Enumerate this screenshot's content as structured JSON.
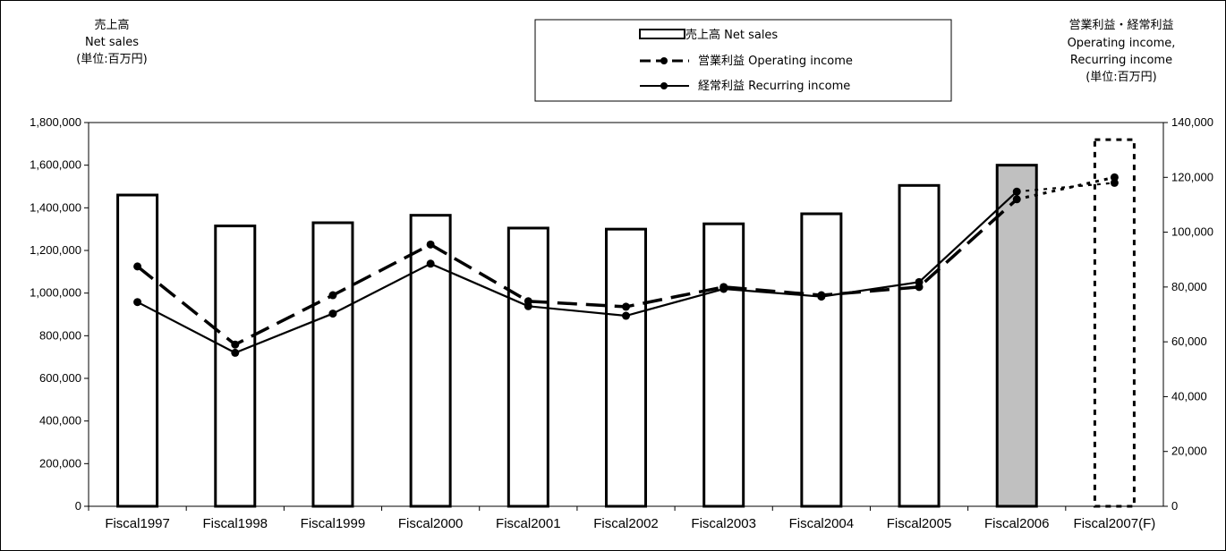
{
  "left_axis_title": [
    "売上高",
    "Net sales",
    "(単位:百万円)"
  ],
  "right_axis_title": [
    "営業利益・経常利益",
    "Operating income,",
    "Recurring income",
    "(単位:百万円)"
  ],
  "legend": {
    "net_sales": "売上高 Net sales",
    "operating": "営業利益 Operating income",
    "recurring": "経常利益 Recurring income"
  },
  "colors": {
    "bar_fill": "#ffffff",
    "bar_highlight": "#c0c0c0",
    "stroke": "#000000"
  },
  "chart_data": {
    "type": "bar",
    "categories": [
      "Fiscal1997",
      "Fiscal1998",
      "Fiscal1999",
      "Fiscal2000",
      "Fiscal2001",
      "Fiscal2002",
      "Fiscal2003",
      "Fiscal2004",
      "Fiscal2005",
      "Fiscal2006",
      "Fiscal2007(F)"
    ],
    "left_axis": {
      "ylim": [
        0,
        1800000
      ],
      "ticks": [
        "0",
        "200,000",
        "400,000",
        "600,000",
        "800,000",
        "1,000,000",
        "1,200,000",
        "1,400,000",
        "1,600,000",
        "1,800,000"
      ]
    },
    "right_axis": {
      "ylim": [
        0,
        140000
      ],
      "ticks": [
        "0",
        "20,000",
        "40,000",
        "60,000",
        "80,000",
        "100,000",
        "120,000",
        "140,000"
      ]
    },
    "series": [
      {
        "name": "売上高 Net sales",
        "type": "bar",
        "axis": "left",
        "values": [
          1460000,
          1315000,
          1330000,
          1365000,
          1305000,
          1300000,
          1325000,
          1372000,
          1505000,
          1600000,
          1720000
        ],
        "highlight_index": 9,
        "forecast_index": 10
      },
      {
        "name": "営業利益 Operating income",
        "type": "line",
        "style": "dashed",
        "axis": "right",
        "values": [
          87500,
          59000,
          77000,
          95500,
          74800,
          72800,
          80000,
          77000,
          80000,
          112000,
          120000
        ]
      },
      {
        "name": "経常利益 Recurring income",
        "type": "line",
        "style": "solid",
        "axis": "right",
        "values": [
          74500,
          56000,
          70300,
          88500,
          73000,
          69500,
          79300,
          76500,
          81800,
          114800,
          118000
        ]
      }
    ]
  }
}
